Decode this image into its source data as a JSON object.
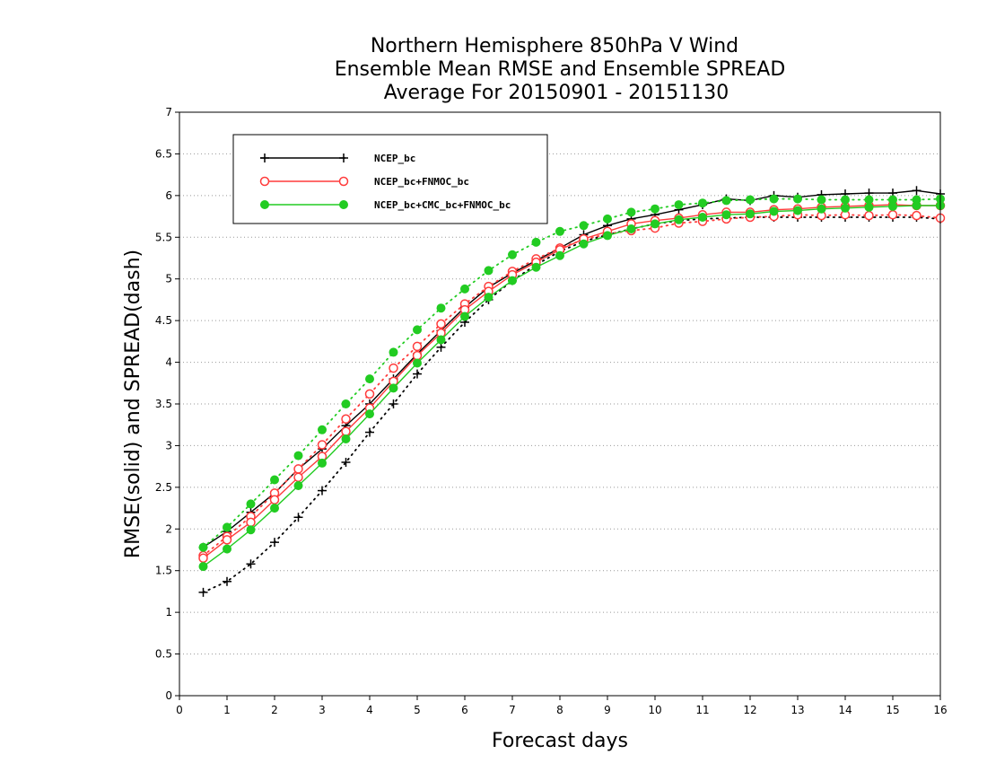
{
  "chart_data": {
    "type": "line",
    "title_lines": [
      "Northern Hemisphere 850hPa V Wind",
      "Ensemble Mean RMSE and Ensemble SPREAD",
      "Average For 20150901 - 20151130"
    ],
    "xlabel": "Forecast days",
    "ylabel": "RMSE(solid) and SPREAD(dash)",
    "xlim": [
      0,
      16
    ],
    "ylim": [
      0,
      7
    ],
    "x_ticks": [
      "0",
      "1",
      "2",
      "3",
      "4",
      "5",
      "6",
      "7",
      "8",
      "9",
      "10",
      "11",
      "12",
      "13",
      "14",
      "15",
      "16"
    ],
    "y_ticks": [
      "0",
      "0.5",
      "1",
      "1.5",
      "2",
      "2.5",
      "3",
      "3.5",
      "4",
      "4.5",
      "5",
      "5.5",
      "6",
      "6.5",
      "7"
    ],
    "grid": "horizontal dotted",
    "legend_position": "top-left",
    "x": [
      0.5,
      1,
      1.5,
      2,
      2.5,
      3,
      3.5,
      4,
      4.5,
      5,
      5.5,
      6,
      6.5,
      7,
      7.5,
      8,
      8.5,
      9,
      9.5,
      10,
      10.5,
      11,
      11.5,
      12,
      12.5,
      13,
      13.5,
      14,
      14.5,
      15,
      15.5,
      16
    ],
    "series": [
      {
        "name": "NCEP_bc",
        "color": "#000000",
        "marker": "plus",
        "rmse": [
          1.78,
          1.97,
          2.2,
          2.43,
          2.72,
          2.96,
          3.24,
          3.5,
          3.8,
          4.1,
          4.38,
          4.66,
          4.9,
          5.07,
          5.22,
          5.37,
          5.53,
          5.64,
          5.72,
          5.77,
          5.83,
          5.89,
          5.96,
          5.94,
          6.0,
          5.98,
          6.01,
          6.02,
          6.03,
          6.03,
          6.06,
          6.02
        ],
        "spread": [
          1.24,
          1.37,
          1.58,
          1.84,
          2.14,
          2.46,
          2.8,
          3.16,
          3.5,
          3.86,
          4.18,
          4.48,
          4.75,
          4.98,
          5.17,
          5.33,
          5.45,
          5.53,
          5.6,
          5.66,
          5.7,
          5.72,
          5.73,
          5.74,
          5.74,
          5.74,
          5.74,
          5.74,
          5.74,
          5.74,
          5.74,
          5.72
        ]
      },
      {
        "name": "NCEP_bc+FNMOC_bc",
        "color": "#ff3b3b",
        "marker": "open-circle",
        "rmse": [
          1.65,
          1.87,
          2.08,
          2.35,
          2.62,
          2.87,
          3.17,
          3.45,
          3.77,
          4.08,
          4.35,
          4.63,
          4.85,
          5.05,
          5.2,
          5.35,
          5.48,
          5.57,
          5.66,
          5.7,
          5.73,
          5.77,
          5.8,
          5.8,
          5.83,
          5.84,
          5.86,
          5.87,
          5.88,
          5.89,
          5.88,
          5.88
        ],
        "spread": [
          1.68,
          1.91,
          2.15,
          2.43,
          2.72,
          3.01,
          3.32,
          3.62,
          3.93,
          4.19,
          4.46,
          4.7,
          4.91,
          5.09,
          5.24,
          5.37,
          5.47,
          5.54,
          5.58,
          5.61,
          5.67,
          5.69,
          5.72,
          5.74,
          5.75,
          5.77,
          5.76,
          5.77,
          5.76,
          5.77,
          5.76,
          5.73
        ]
      },
      {
        "name": "NCEP_bc+CMC_bc+FNMOC_bc",
        "color": "#22cc22",
        "marker": "filled-circle",
        "rmse": [
          1.55,
          1.76,
          1.99,
          2.25,
          2.52,
          2.79,
          3.08,
          3.38,
          3.69,
          3.99,
          4.27,
          4.55,
          4.78,
          4.98,
          5.14,
          5.28,
          5.42,
          5.52,
          5.6,
          5.66,
          5.71,
          5.74,
          5.77,
          5.78,
          5.81,
          5.82,
          5.84,
          5.85,
          5.86,
          5.87,
          5.88,
          5.88
        ],
        "spread": [
          1.78,
          2.02,
          2.3,
          2.59,
          2.88,
          3.19,
          3.5,
          3.8,
          4.12,
          4.39,
          4.65,
          4.88,
          5.1,
          5.29,
          5.44,
          5.57,
          5.64,
          5.72,
          5.8,
          5.84,
          5.89,
          5.91,
          5.94,
          5.95,
          5.96,
          5.96,
          5.95,
          5.95,
          5.95,
          5.95,
          5.95,
          5.96
        ]
      }
    ]
  }
}
